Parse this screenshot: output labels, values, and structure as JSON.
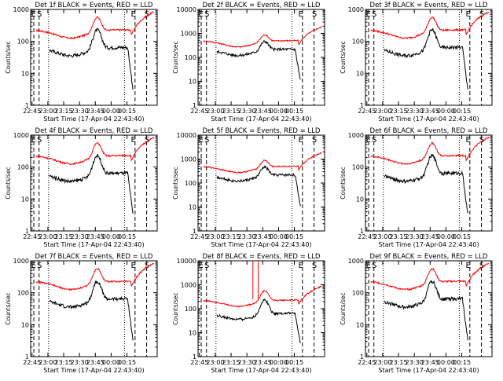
{
  "time_axis_ticks": [
    "22:45",
    "23:00",
    "23:15",
    "23:30",
    "23:45",
    "00:00",
    "00:15"
  ],
  "time_axis_ticks_alt": [
    "22:45",
    "23:00",
    "23:15",
    "23:30",
    "23:45",
    "00:00",
    "00:15"
  ],
  "xlabel": "Start Time (17-Apr-04 22:43:40)",
  "ylabel": "Counts/sec",
  "y_ticks": [
    "1",
    "10",
    "100",
    "1000"
  ],
  "y_ticks_wide": [
    "1",
    "10",
    "100",
    "1000",
    "10000"
  ],
  "markers": {
    "E": "E",
    "S": "S"
  },
  "colors": {
    "events": "#000000",
    "lld": "#ff0000"
  },
  "chart_data": [
    {
      "type": "line",
      "title": "Det 1f BLACK = Events, RED = LLD",
      "ylog": true,
      "ylim": [
        1,
        1000
      ],
      "series": [
        {
          "name": "Events",
          "color": "#000000"
        },
        {
          "name": "LLD",
          "color": "#ff0000"
        }
      ]
    },
    {
      "type": "line",
      "title": "Det 2f BLACK = Events, RED = LLD",
      "ylog": true,
      "ylim": [
        1,
        10000
      ],
      "series": [
        {
          "name": "Events",
          "color": "#000000"
        },
        {
          "name": "LLD",
          "color": "#ff0000"
        }
      ]
    },
    {
      "type": "line",
      "title": "Det 3f BLACK = Events, RED = LLD",
      "ylog": true,
      "ylim": [
        1,
        1000
      ],
      "series": [
        {
          "name": "Events",
          "color": "#000000"
        },
        {
          "name": "LLD",
          "color": "#ff0000"
        }
      ]
    },
    {
      "type": "line",
      "title": "Det 4f BLACK = Events, RED = LLD",
      "ylog": true,
      "ylim": [
        1,
        1000
      ],
      "series": [
        {
          "name": "Events",
          "color": "#000000"
        },
        {
          "name": "LLD",
          "color": "#ff0000"
        }
      ]
    },
    {
      "type": "line",
      "title": "Det 5f BLACK = Events, RED = LLD",
      "ylog": true,
      "ylim": [
        1,
        10000
      ],
      "series": [
        {
          "name": "Events",
          "color": "#000000"
        },
        {
          "name": "LLD",
          "color": "#ff0000"
        }
      ]
    },
    {
      "type": "line",
      "title": "Det 6f BLACK = Events, RED = LLD",
      "ylog": true,
      "ylim": [
        1,
        1000
      ],
      "series": [
        {
          "name": "Events",
          "color": "#000000"
        },
        {
          "name": "LLD",
          "color": "#ff0000"
        }
      ]
    },
    {
      "type": "line",
      "title": "Det 7f BLACK = Events, RED = LLD",
      "ylog": true,
      "ylim": [
        1,
        1000
      ],
      "series": [
        {
          "name": "Events",
          "color": "#000000"
        },
        {
          "name": "LLD",
          "color": "#ff0000"
        }
      ]
    },
    {
      "type": "line",
      "title": "Det 8f BLACK = Events, RED = LLD",
      "ylog": true,
      "ylim": [
        1,
        10000
      ],
      "series": [
        {
          "name": "Events",
          "color": "#000000"
        },
        {
          "name": "LLD",
          "color": "#ff0000"
        }
      ]
    },
    {
      "type": "line",
      "title": "Det 9f BLACK = Events, RED = LLD",
      "ylog": true,
      "ylim": [
        1,
        1000
      ],
      "series": [
        {
          "name": "Events",
          "color": "#000000"
        },
        {
          "name": "LLD",
          "color": "#ff0000"
        }
      ]
    }
  ]
}
